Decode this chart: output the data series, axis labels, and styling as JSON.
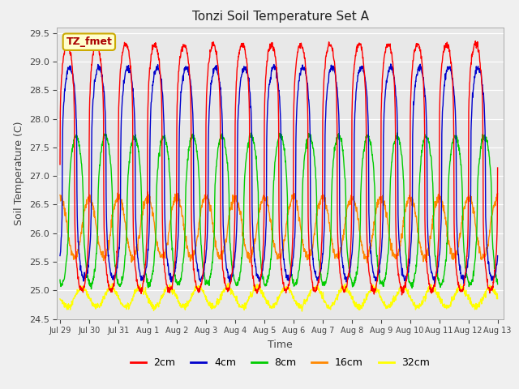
{
  "title": "Tonzi Soil Temperature Set A",
  "xlabel": "Time",
  "ylabel": "Soil Temperature (C)",
  "annotation": "TZ_fmet",
  "ylim": [
    24.5,
    29.6
  ],
  "fig_facecolor": "#f0f0f0",
  "ax_facecolor": "#e8e8e8",
  "tick_labels": [
    "Jul 29",
    "Jul 30",
    "Jul 31",
    "Aug 1",
    "Aug 2",
    "Aug 3",
    "Aug 4",
    "Aug 5",
    "Aug 6",
    "Aug 7",
    "Aug 8",
    "Aug 9",
    "Aug 10",
    "Aug 11",
    "Aug 12",
    "Aug 13"
  ],
  "colors": {
    "2cm": "#ff0000",
    "4cm": "#0000cc",
    "8cm": "#00cc00",
    "16cm": "#ff8800",
    "32cm": "#ffff00"
  },
  "legend_labels": [
    "2cm",
    "4cm",
    "8cm",
    "16cm",
    "32cm"
  ],
  "n_points": 1500,
  "series_params": {
    "2cm": {
      "mean": 27.15,
      "amp": 2.15,
      "phase": 0.0,
      "sharpness": 3.5,
      "noise": 0.03
    },
    "4cm": {
      "mean": 27.05,
      "amp": 1.85,
      "phase": 0.08,
      "sharpness": 3.0,
      "noise": 0.03
    },
    "8cm": {
      "mean": 26.4,
      "amp": 1.3,
      "phase": 0.3,
      "sharpness": 2.0,
      "noise": 0.03
    },
    "16cm": {
      "mean": 26.1,
      "amp": 0.52,
      "phase": 0.75,
      "sharpness": 1.2,
      "noise": 0.04
    },
    "32cm": {
      "mean": 24.88,
      "amp": 0.17,
      "phase": 1.5,
      "sharpness": 1.0,
      "noise": 0.03
    }
  }
}
